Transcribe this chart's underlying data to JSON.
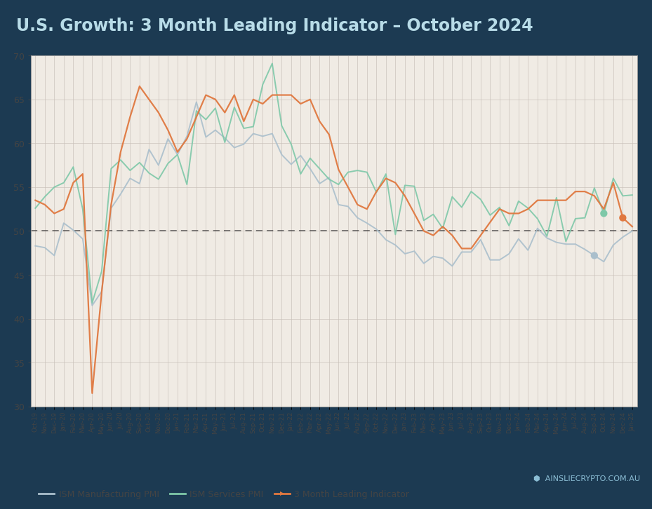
{
  "title": "U.S. Growth: 3 Month Leading Indicator – October 2024",
  "title_color": "#b8dce8",
  "title_bg": "#0d1b2a",
  "plot_bg": "#f0ebe4",
  "outer_bg": "#1c3a52",
  "dashed_line_y": 50,
  "ylim": [
    30,
    70
  ],
  "yticks": [
    30,
    35,
    40,
    45,
    50,
    55,
    60,
    65,
    70
  ],
  "legend_labels": [
    "ISM Manufacturing PMI",
    "ISM Services PMI",
    "3 Month Leading Indicator"
  ],
  "legend_colors": [
    "#aabfcc",
    "#7ec8a8",
    "#e07840"
  ],
  "x_labels": [
    "Oct-19",
    "Nov-19",
    "Dec-19",
    "Jan-20",
    "Feb-20",
    "Mar-20",
    "Apr-20",
    "May-20",
    "Jun-20",
    "Jul-20",
    "Aug-20",
    "Sep-20",
    "Oct-20",
    "Nov-20",
    "Dec-20",
    "Jan-21",
    "Feb-21",
    "Mar-21",
    "Apr-21",
    "May-21",
    "Jun-21",
    "Jul-21",
    "Aug-21",
    "Sep-21",
    "Oct-21",
    "Nov-21",
    "Dec-21",
    "Jan-22",
    "Feb-22",
    "Mar-22",
    "Apr-22",
    "May-22",
    "Jun-22",
    "Jul-22",
    "Aug-22",
    "Sep-22",
    "Oct-22",
    "Nov-22",
    "Dec-22",
    "Jan-23",
    "Feb-23",
    "Mar-23",
    "Apr-23",
    "May-23",
    "Jun-23",
    "Jul-23",
    "Aug-23",
    "Sep-23",
    "Oct-23",
    "Nov-23",
    "Dec-23",
    "Jan-24",
    "Feb-24",
    "Mar-24",
    "Apr-24",
    "May-24",
    "Jun-24",
    "Jul-24",
    "Aug-24",
    "Sep-24",
    "Oct-24",
    "Nov-24",
    "Dec-24",
    "Jan-25"
  ],
  "ism_manufacturing": [
    48.3,
    48.1,
    47.2,
    50.9,
    50.1,
    49.1,
    41.5,
    43.1,
    52.6,
    54.2,
    56.0,
    55.4,
    59.3,
    57.5,
    60.5,
    58.7,
    60.8,
    64.7,
    60.7,
    61.5,
    60.6,
    59.5,
    59.9,
    61.1,
    60.8,
    61.1,
    58.7,
    57.6,
    58.6,
    57.1,
    55.4,
    56.1,
    53.0,
    52.8,
    51.5,
    50.9,
    50.2,
    49.0,
    48.4,
    47.4,
    47.7,
    46.3,
    47.1,
    46.9,
    46.0,
    47.6,
    47.6,
    49.0,
    46.7,
    46.7,
    47.4,
    49.1,
    47.8,
    50.3,
    49.2,
    48.7,
    48.5,
    48.5,
    47.9,
    47.2,
    46.5,
    48.4,
    49.3,
    50.0
  ],
  "ism_services": [
    52.6,
    53.9,
    55.0,
    55.5,
    57.3,
    52.5,
    41.8,
    45.4,
    57.1,
    58.1,
    56.9,
    57.8,
    56.6,
    55.9,
    57.7,
    58.7,
    55.3,
    63.7,
    62.7,
    64.0,
    60.1,
    64.1,
    61.7,
    61.9,
    66.7,
    69.1,
    62.0,
    59.9,
    56.5,
    58.3,
    57.1,
    55.9,
    55.3,
    56.7,
    56.9,
    56.7,
    54.4,
    56.5,
    49.6,
    55.2,
    55.1,
    51.2,
    51.9,
    50.3,
    53.9,
    52.7,
    54.5,
    53.6,
    51.8,
    52.7,
    50.6,
    53.4,
    52.6,
    51.4,
    49.4,
    53.8,
    48.8,
    51.4,
    51.5,
    54.9,
    52.0,
    56.0,
    54.0,
    54.1
  ],
  "leading_indicator": [
    53.5,
    53.0,
    52.0,
    52.5,
    55.5,
    56.5,
    31.5,
    43.0,
    53.0,
    59.0,
    63.0,
    66.5,
    65.0,
    63.5,
    61.5,
    59.0,
    60.5,
    63.0,
    65.5,
    65.0,
    63.5,
    65.5,
    62.5,
    65.0,
    64.5,
    65.5,
    65.5,
    65.5,
    64.5,
    65.0,
    62.5,
    61.0,
    57.0,
    55.0,
    53.0,
    52.5,
    54.5,
    56.0,
    55.5,
    54.0,
    52.0,
    50.0,
    49.5,
    50.5,
    49.5,
    48.0,
    48.0,
    49.5,
    51.0,
    52.5,
    52.0,
    52.0,
    52.5,
    53.5,
    53.5,
    53.5,
    53.5,
    54.5,
    54.5,
    54.0,
    52.5,
    55.5,
    51.5,
    50.5
  ],
  "grid_color": "#c8c0b8",
  "tick_color": "#444444",
  "endpoint_mfg_idx": 59,
  "endpoint_svc_idx": 60,
  "endpoint_lead_idx": 62
}
